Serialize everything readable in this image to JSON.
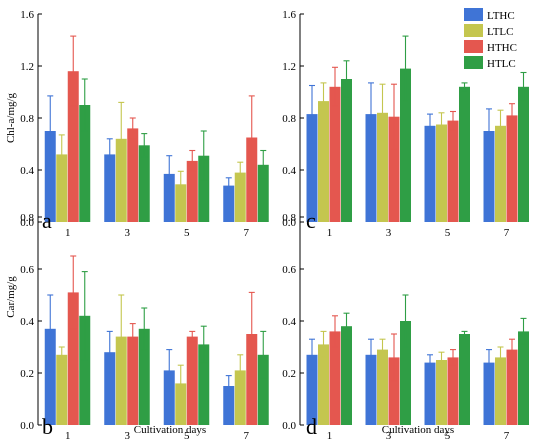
{
  "colors": {
    "LTHC": "#3f74d6",
    "LTLC": "#c4c64f",
    "HTHC": "#e4574f",
    "HTLC": "#2f9e45",
    "error_bar": "#3a3a3a"
  },
  "legend": {
    "placement": "top-right of panel c",
    "entries": [
      "LTHC",
      "LTLC",
      "HTHC",
      "HTLC"
    ]
  },
  "chart_data": [
    {
      "id": "a",
      "type": "bar",
      "panel_label": "a",
      "categories": [
        "1",
        "3",
        "5",
        "7"
      ],
      "ylabel": "Chl-a/mg/g",
      "xlabel": "",
      "ylim": [
        0,
        1.6
      ],
      "yticks": [
        "0.0",
        "0.4",
        "0.8",
        "1.2",
        "1.6"
      ],
      "series": [
        {
          "name": "LTHC",
          "values": [
            0.7,
            0.52,
            0.37,
            0.28
          ],
          "errors": [
            0.27,
            0.12,
            0.14,
            0.06
          ]
        },
        {
          "name": "LTLC",
          "values": [
            0.52,
            0.64,
            0.29,
            0.38
          ],
          "errors": [
            0.15,
            0.28,
            0.1,
            0.08
          ]
        },
        {
          "name": "HTHC",
          "values": [
            1.16,
            0.72,
            0.47,
            0.65
          ],
          "errors": [
            0.27,
            0.08,
            0.08,
            0.32
          ]
        },
        {
          "name": "HTLC",
          "values": [
            0.9,
            0.59,
            0.51,
            0.44
          ],
          "errors": [
            0.2,
            0.09,
            0.19,
            0.11
          ]
        }
      ]
    },
    {
      "id": "c",
      "type": "bar",
      "panel_label": "c",
      "categories": [
        "1",
        "3",
        "5",
        "7"
      ],
      "ylabel": "",
      "xlabel": "",
      "ylim": [
        0,
        1.6
      ],
      "yticks": [
        "0.0",
        "0.4",
        "0.8",
        "1.2",
        "1.6"
      ],
      "series": [
        {
          "name": "LTHC",
          "values": [
            0.83,
            0.83,
            0.74,
            0.7
          ],
          "errors": [
            0.22,
            0.24,
            0.09,
            0.17
          ]
        },
        {
          "name": "LTLC",
          "values": [
            0.93,
            0.84,
            0.75,
            0.74
          ],
          "errors": [
            0.14,
            0.22,
            0.09,
            0.12
          ]
        },
        {
          "name": "HTHC",
          "values": [
            1.04,
            0.81,
            0.78,
            0.82
          ],
          "errors": [
            0.15,
            0.25,
            0.07,
            0.09
          ]
        },
        {
          "name": "HTLC",
          "values": [
            1.1,
            1.18,
            1.04,
            1.04
          ],
          "errors": [
            0.14,
            0.25,
            0.03,
            0.11
          ]
        }
      ]
    },
    {
      "id": "b",
      "type": "bar",
      "panel_label": "b",
      "categories": [
        "1",
        "3",
        "5",
        "7"
      ],
      "ylabel": "Car/mg/g",
      "xlabel": "Cultivation days",
      "ylim": [
        0,
        0.8
      ],
      "yticks": [
        "0.0",
        "0.2",
        "0.4",
        "0.6",
        "0.8"
      ],
      "series": [
        {
          "name": "LTHC",
          "values": [
            0.37,
            0.28,
            0.21,
            0.15
          ],
          "errors": [
            0.13,
            0.08,
            0.08,
            0.04
          ]
        },
        {
          "name": "LTLC",
          "values": [
            0.27,
            0.34,
            0.16,
            0.21
          ],
          "errors": [
            0.03,
            0.16,
            0.07,
            0.06
          ]
        },
        {
          "name": "HTHC",
          "values": [
            0.51,
            0.34,
            0.34,
            0.35
          ],
          "errors": [
            0.14,
            0.05,
            0.02,
            0.16
          ]
        },
        {
          "name": "HTLC",
          "values": [
            0.42,
            0.37,
            0.31,
            0.27
          ],
          "errors": [
            0.17,
            0.08,
            0.07,
            0.09
          ]
        }
      ]
    },
    {
      "id": "d",
      "type": "bar",
      "panel_label": "d",
      "categories": [
        "1",
        "3",
        "5",
        "7"
      ],
      "ylabel": "",
      "xlabel": "Cultivation days",
      "ylim": [
        0,
        0.8
      ],
      "yticks": [
        "0.0",
        "0.2",
        "0.4",
        "0.6",
        "0.8"
      ],
      "series": [
        {
          "name": "LTHC",
          "values": [
            0.27,
            0.27,
            0.24,
            0.24
          ],
          "errors": [
            0.06,
            0.06,
            0.03,
            0.05
          ]
        },
        {
          "name": "LTLC",
          "values": [
            0.31,
            0.29,
            0.25,
            0.26
          ],
          "errors": [
            0.05,
            0.04,
            0.03,
            0.04
          ]
        },
        {
          "name": "HTHC",
          "values": [
            0.36,
            0.26,
            0.26,
            0.29
          ],
          "errors": [
            0.06,
            0.09,
            0.03,
            0.04
          ]
        },
        {
          "name": "HTLC",
          "values": [
            0.38,
            0.4,
            0.35,
            0.36
          ],
          "errors": [
            0.05,
            0.1,
            0.01,
            0.05
          ]
        }
      ]
    }
  ]
}
